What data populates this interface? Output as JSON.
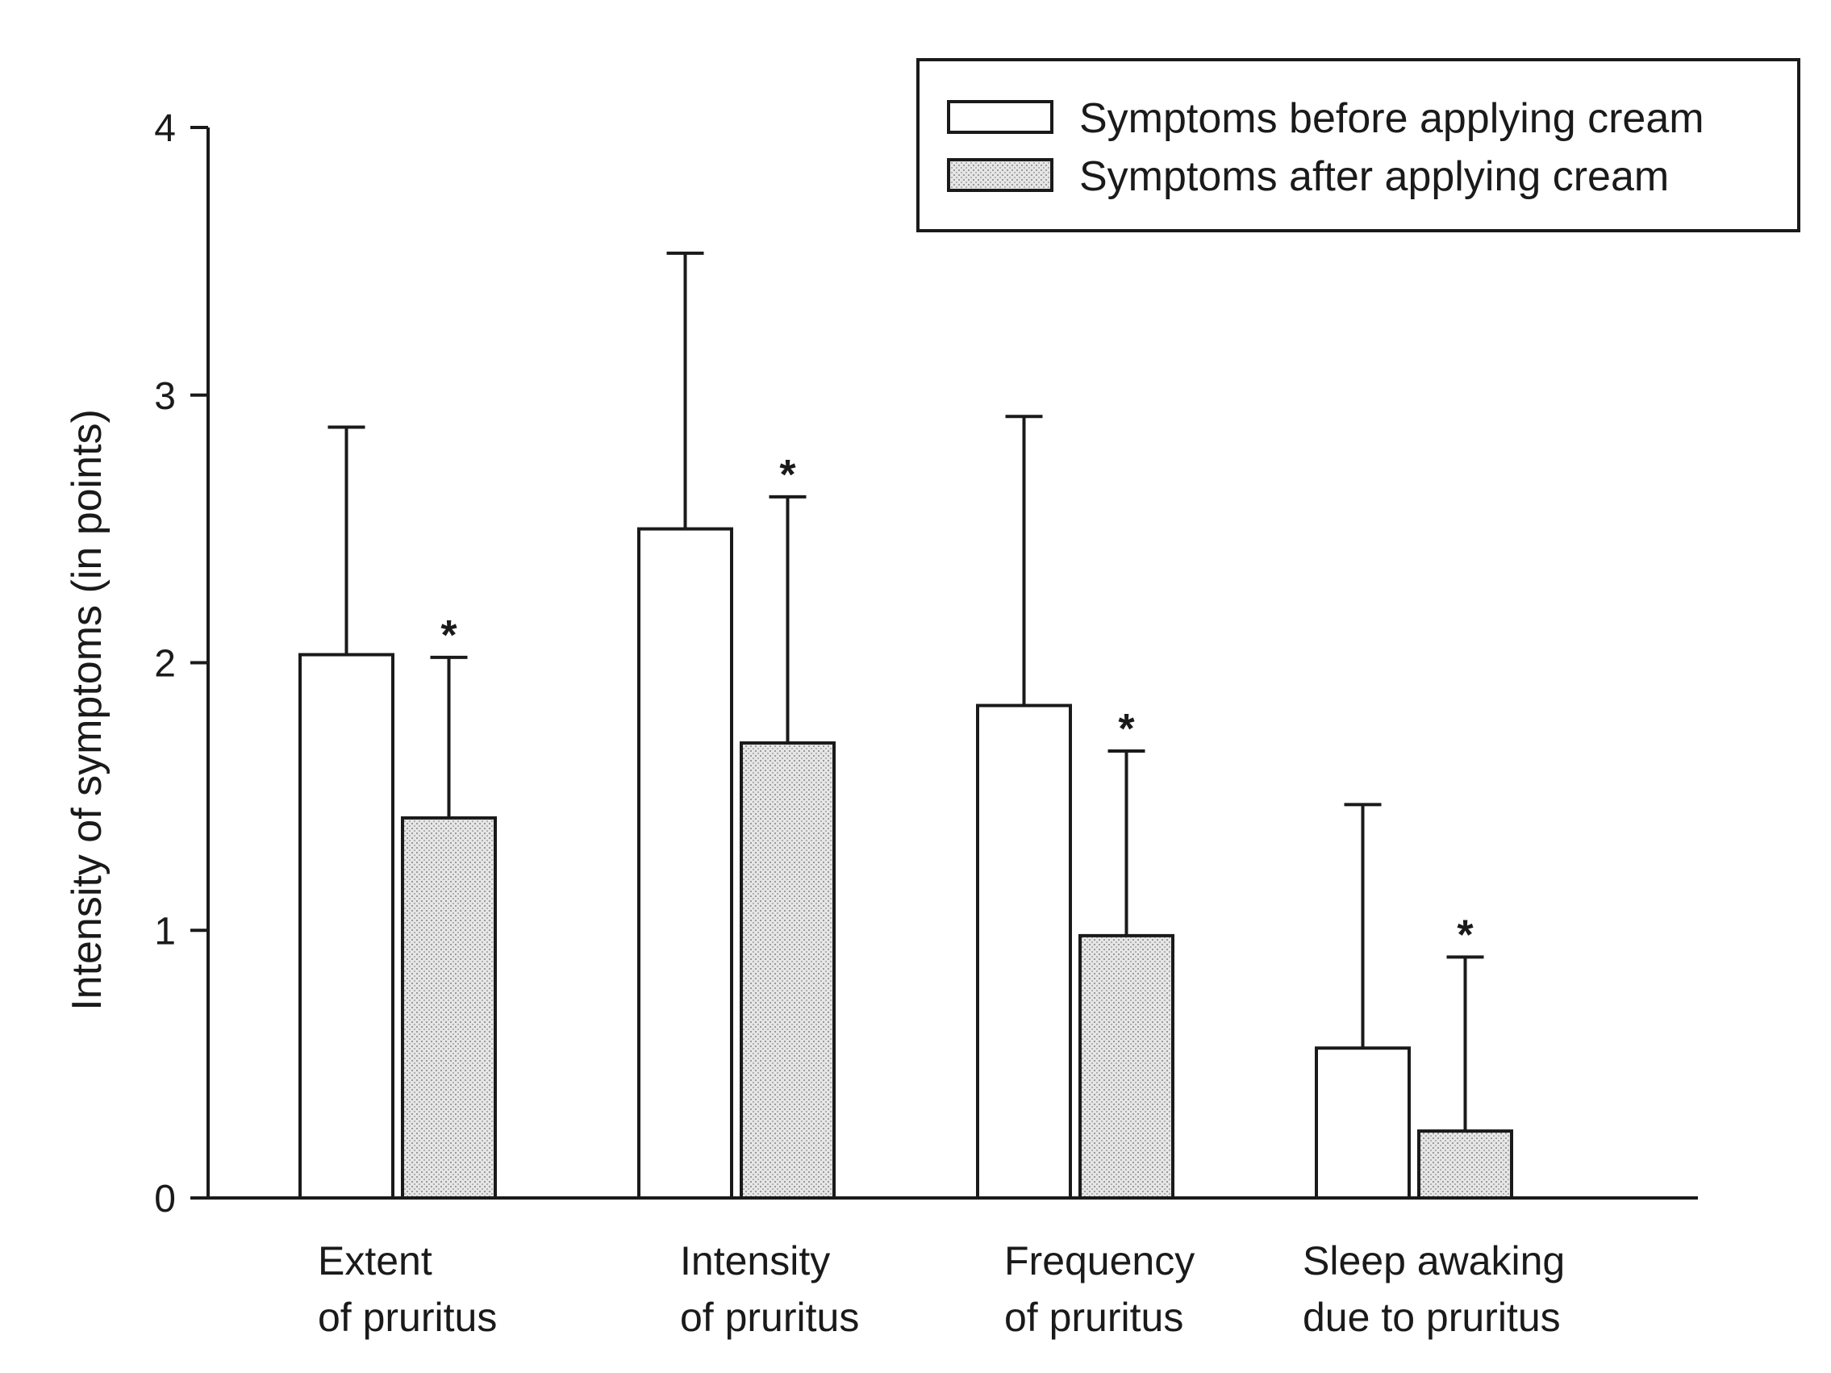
{
  "chart_data": {
    "type": "bar",
    "title": "",
    "xlabel": "",
    "ylabel": "Intensity of symptoms (in points)",
    "ylim": [
      0,
      4
    ],
    "yticks": [
      "0",
      "1",
      "2",
      "3",
      "4"
    ],
    "ytick_values": [
      0,
      1,
      2,
      3,
      4
    ],
    "categories": [
      {
        "line1": "Extent",
        "line2": "of pruritus"
      },
      {
        "line1": "Intensity",
        "line2": "of pruritus"
      },
      {
        "line1": "Frequency",
        "line2": "of pruritus"
      },
      {
        "line1": "Sleep awaking",
        "line2": "due to pruritus"
      }
    ],
    "series": [
      {
        "name": "Symptoms before applying cream",
        "values": [
          2.03,
          2.5,
          1.84,
          0.56
        ],
        "error": [
          0.85,
          1.03,
          1.08,
          0.91
        ],
        "color": "#ffffff"
      },
      {
        "name": "Symptoms after applying cream",
        "values": [
          1.42,
          1.7,
          0.98,
          0.25
        ],
        "error": [
          0.6,
          0.92,
          0.69,
          0.65
        ],
        "color": "#c8c8c8",
        "significance": [
          "*",
          "*",
          "*",
          "*"
        ]
      }
    ],
    "legend": {
      "position": "top-right"
    },
    "grid": false
  }
}
